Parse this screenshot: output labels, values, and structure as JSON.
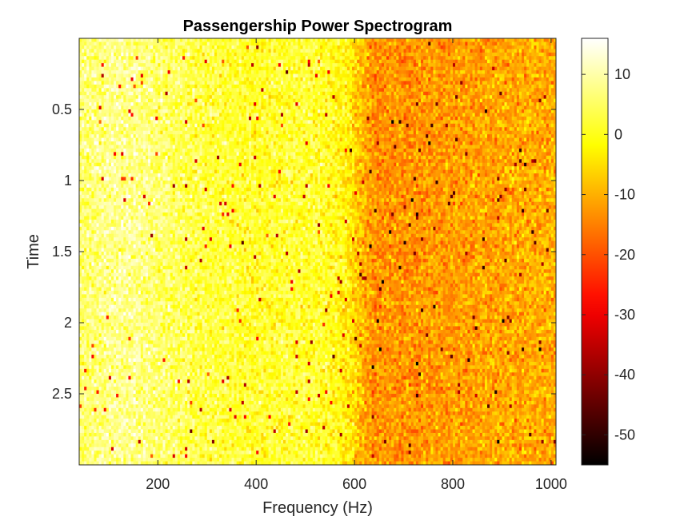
{
  "chart_data": {
    "type": "heatmap",
    "title": "Passengership Power Spectrogram",
    "xlabel": "Frequency (Hz)",
    "ylabel": "Time",
    "xlim": [
      40,
      1010
    ],
    "ylim": [
      0,
      3
    ],
    "y_direction": "reversed",
    "xticks": [
      200,
      400,
      600,
      800,
      1000
    ],
    "yticks": [
      0.5,
      1,
      1.5,
      2,
      2.5
    ],
    "colormap": "hot",
    "colorbar": {
      "range": [
        -55,
        16
      ],
      "ticks": [
        10,
        0,
        -10,
        -20,
        -30,
        -40,
        -50
      ],
      "placement": "right"
    },
    "grid": false,
    "frequency_resolution_hz": 5,
    "time_resolution": 0.025,
    "mean_power_profile": {
      "frequency": [
        40,
        100,
        150,
        200,
        300,
        400,
        500,
        560,
        590,
        610,
        640,
        700,
        800,
        900,
        1010
      ],
      "power_db": [
        6,
        8,
        8,
        6,
        3,
        1,
        2,
        0,
        -3,
        -8,
        -13,
        -13,
        -12,
        -11,
        -10
      ]
    },
    "noise_std_db": 6.5
  }
}
